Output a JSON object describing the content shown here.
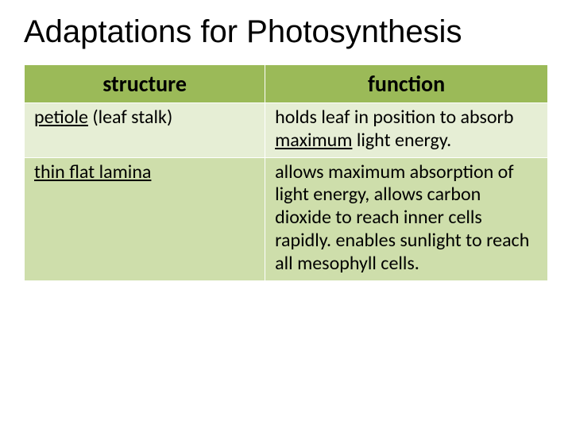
{
  "title": "Adaptations for Photosynthesis",
  "table": {
    "columns": [
      "structure",
      "function"
    ],
    "rows": [
      {
        "structure_html": "<span class='structure'>petiole</span> (leaf stalk)",
        "function_html": "holds leaf in position to absorb <span class='structure'>maximum</span> light energy."
      },
      {
        "structure_html": "<span class='structure'>thin flat lamina</span>",
        "function_html": "allows maximum absorption of light energy, allows carbon dioxide to reach inner cells rapidly. enables sunlight to reach all mesophyll cells."
      }
    ],
    "header_bg": "#9bba58",
    "row_bg_a": "#e6eed5",
    "row_bg_b": "#cedeab",
    "border_color": "#ffffff",
    "header_fontsize": 28,
    "cell_fontsize": 24,
    "col_widths_pct": [
      46,
      54
    ]
  },
  "title_fontsize": 40,
  "background": "#ffffff",
  "text_color": "#000000"
}
